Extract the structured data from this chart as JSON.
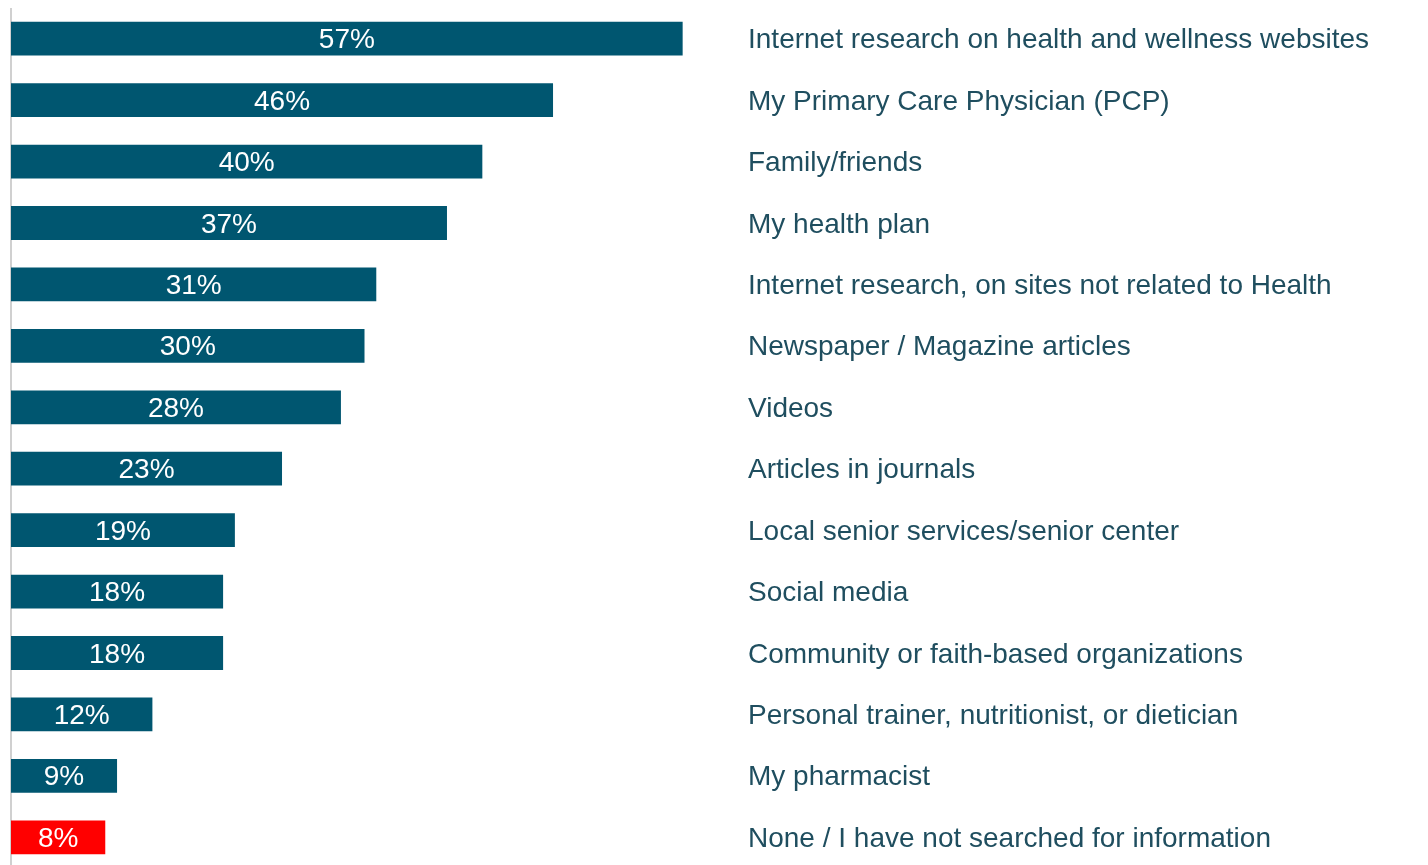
{
  "chart_data": {
    "type": "bar",
    "orientation": "horizontal",
    "categories": [
      "Internet research on health and wellness websites",
      "My Primary Care Physician (PCP)",
      "Family/friends",
      "My health plan",
      "Internet research, on sites not related to Health",
      "Newspaper / Magazine articles",
      "Videos",
      "Articles in journals",
      "Local senior services/senior center",
      "Social media",
      "Community or faith-based organizations",
      "Personal trainer, nutritionist, or dietician",
      "My pharmacist",
      "None / I have not searched for information"
    ],
    "values": [
      57,
      46,
      40,
      37,
      31,
      30,
      28,
      23,
      19,
      18,
      18,
      12,
      9,
      8
    ],
    "value_labels": [
      "57%",
      "46%",
      "40%",
      "37%",
      "31%",
      "30%",
      "28%",
      "23%",
      "19%",
      "18%",
      "18%",
      "12%",
      "9%",
      "8%"
    ],
    "colors": [
      "#005670",
      "#005670",
      "#005670",
      "#005670",
      "#005670",
      "#005670",
      "#005670",
      "#005670",
      "#005670",
      "#005670",
      "#005670",
      "#005670",
      "#005670",
      "#ff0000"
    ],
    "tick_labels": "y"
  }
}
